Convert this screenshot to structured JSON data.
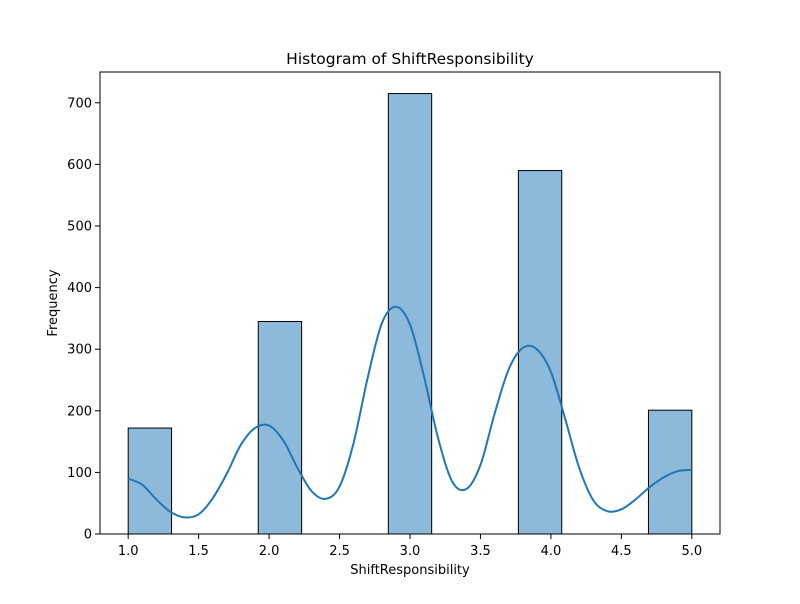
{
  "chart_data": {
    "type": "bar",
    "title": "Histogram of ShiftResponsibility",
    "xlabel": "ShiftResponsibility",
    "ylabel": "Frequency",
    "xlim": [
      0.8,
      5.2
    ],
    "ylim": [
      0,
      750
    ],
    "xticks": [
      1.0,
      1.5,
      2.0,
      2.5,
      3.0,
      3.5,
      4.0,
      4.5,
      5.0
    ],
    "xtick_labels": [
      "1.0",
      "1.5",
      "2.0",
      "2.5",
      "3.0",
      "3.5",
      "4.0",
      "4.5",
      "5.0"
    ],
    "yticks": [
      0,
      100,
      200,
      300,
      400,
      500,
      600,
      700
    ],
    "ytick_labels": [
      "0",
      "100",
      "200",
      "300",
      "400",
      "500",
      "600",
      "700"
    ],
    "grid": false,
    "bins": [
      {
        "x0": 1.0,
        "x1": 1.3077,
        "value": 172
      },
      {
        "x0": 1.9231,
        "x1": 2.2308,
        "value": 345
      },
      {
        "x0": 2.8462,
        "x1": 3.1538,
        "value": 715
      },
      {
        "x0": 3.7692,
        "x1": 4.0769,
        "value": 590
      },
      {
        "x0": 4.6923,
        "x1": 5.0,
        "value": 201
      }
    ],
    "kde": {
      "x": [
        1.0,
        1.1,
        1.2,
        1.3,
        1.4,
        1.5,
        1.6,
        1.7,
        1.8,
        1.9,
        2.0,
        2.1,
        2.2,
        2.3,
        2.4,
        2.5,
        2.6,
        2.7,
        2.8,
        2.9,
        3.0,
        3.1,
        3.2,
        3.3,
        3.4,
        3.5,
        3.6,
        3.7,
        3.8,
        3.9,
        4.0,
        4.1,
        4.2,
        4.3,
        4.4,
        4.5,
        4.6,
        4.7,
        4.8,
        4.9,
        5.0
      ],
      "y": [
        90,
        80,
        56,
        36,
        27,
        32,
        58,
        98,
        145,
        172,
        176,
        152,
        108,
        70,
        57,
        77,
        148,
        254,
        342,
        369,
        340,
        255,
        155,
        85,
        73,
        112,
        195,
        267,
        302,
        300,
        263,
        188,
        108,
        55,
        37,
        40,
        56,
        76,
        92,
        102,
        104
      ]
    },
    "colors": {
      "bar_fill": "#8db9db",
      "bar_edge": "#000000",
      "kde_line": "#1f77b4"
    }
  }
}
